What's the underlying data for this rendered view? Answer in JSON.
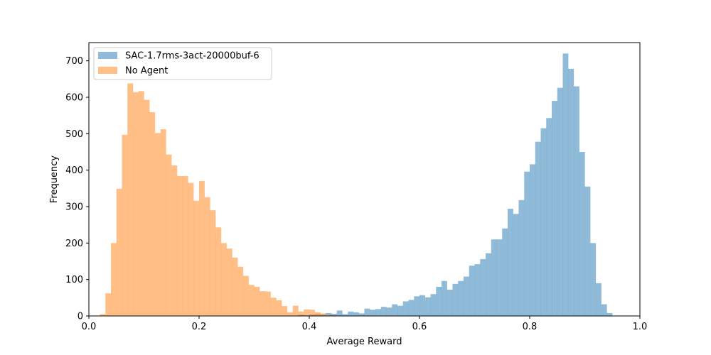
{
  "chart_data": {
    "type": "bar",
    "title": "",
    "xlabel": "Average Reward",
    "ylabel": "Frequency",
    "xlim": [
      0.0,
      1.0
    ],
    "ylim": [
      0,
      750
    ],
    "xticks": [
      0.0,
      0.2,
      0.4,
      0.6,
      0.8,
      1.0
    ],
    "xtick_labels": [
      "0.0",
      "0.2",
      "0.4",
      "0.6",
      "0.8",
      "1.0"
    ],
    "yticks": [
      0,
      100,
      200,
      300,
      400,
      500,
      600,
      700
    ],
    "ytick_labels": [
      "0",
      "100",
      "200",
      "300",
      "400",
      "500",
      "600",
      "700"
    ],
    "grid": false,
    "legend_position": "top-left",
    "series": [
      {
        "name": "SAC-1.7rms-3act-20000buf-6",
        "color": "#1f77b4",
        "opacity": 0.5,
        "bin_width": 0.01,
        "bins": [
          [
            0.38,
            3
          ],
          [
            0.39,
            2
          ],
          [
            0.4,
            4
          ],
          [
            0.41,
            5
          ],
          [
            0.42,
            4
          ],
          [
            0.43,
            8
          ],
          [
            0.44,
            6
          ],
          [
            0.45,
            15
          ],
          [
            0.46,
            5
          ],
          [
            0.47,
            12
          ],
          [
            0.48,
            10
          ],
          [
            0.49,
            7
          ],
          [
            0.5,
            20
          ],
          [
            0.51,
            17
          ],
          [
            0.52,
            19
          ],
          [
            0.53,
            25
          ],
          [
            0.54,
            23
          ],
          [
            0.55,
            32
          ],
          [
            0.56,
            28
          ],
          [
            0.57,
            40
          ],
          [
            0.58,
            44
          ],
          [
            0.59,
            54
          ],
          [
            0.6,
            57
          ],
          [
            0.61,
            51
          ],
          [
            0.62,
            60
          ],
          [
            0.63,
            80
          ],
          [
            0.64,
            96
          ],
          [
            0.65,
            72
          ],
          [
            0.66,
            88
          ],
          [
            0.67,
            96
          ],
          [
            0.68,
            108
          ],
          [
            0.69,
            138
          ],
          [
            0.7,
            142
          ],
          [
            0.71,
            156
          ],
          [
            0.72,
            172
          ],
          [
            0.73,
            210
          ],
          [
            0.74,
            210
          ],
          [
            0.75,
            240
          ],
          [
            0.76,
            294
          ],
          [
            0.77,
            280
          ],
          [
            0.78,
            318
          ],
          [
            0.79,
            396
          ],
          [
            0.8,
            416
          ],
          [
            0.81,
            478
          ],
          [
            0.82,
            515
          ],
          [
            0.83,
            543
          ],
          [
            0.84,
            590
          ],
          [
            0.85,
            626
          ],
          [
            0.86,
            720
          ],
          [
            0.87,
            678
          ],
          [
            0.88,
            630
          ],
          [
            0.89,
            450
          ],
          [
            0.9,
            355
          ],
          [
            0.91,
            200
          ],
          [
            0.92,
            90
          ],
          [
            0.93,
            32
          ],
          [
            0.94,
            8
          ]
        ]
      },
      {
        "name": "No Agent",
        "color": "#ff7f0e",
        "opacity": 0.5,
        "bin_width": 0.01,
        "bins": [
          [
            0.02,
            5
          ],
          [
            0.03,
            62
          ],
          [
            0.04,
            200
          ],
          [
            0.05,
            349
          ],
          [
            0.06,
            497
          ],
          [
            0.07,
            638
          ],
          [
            0.08,
            614
          ],
          [
            0.09,
            617
          ],
          [
            0.1,
            593
          ],
          [
            0.11,
            559
          ],
          [
            0.12,
            502
          ],
          [
            0.13,
            512
          ],
          [
            0.14,
            443
          ],
          [
            0.15,
            413
          ],
          [
            0.16,
            384
          ],
          [
            0.17,
            384
          ],
          [
            0.18,
            365
          ],
          [
            0.19,
            316
          ],
          [
            0.2,
            370
          ],
          [
            0.21,
            326
          ],
          [
            0.22,
            290
          ],
          [
            0.23,
            243
          ],
          [
            0.24,
            200
          ],
          [
            0.25,
            185
          ],
          [
            0.26,
            160
          ],
          [
            0.27,
            135
          ],
          [
            0.28,
            110
          ],
          [
            0.29,
            85
          ],
          [
            0.3,
            80
          ],
          [
            0.31,
            68
          ],
          [
            0.32,
            67
          ],
          [
            0.33,
            50
          ],
          [
            0.34,
            43
          ],
          [
            0.35,
            27
          ],
          [
            0.36,
            10
          ],
          [
            0.37,
            28
          ],
          [
            0.38,
            12
          ],
          [
            0.39,
            18
          ],
          [
            0.4,
            17
          ],
          [
            0.41,
            10
          ],
          [
            0.42,
            7
          ],
          [
            0.43,
            3
          ],
          [
            0.44,
            2
          ]
        ]
      }
    ]
  }
}
